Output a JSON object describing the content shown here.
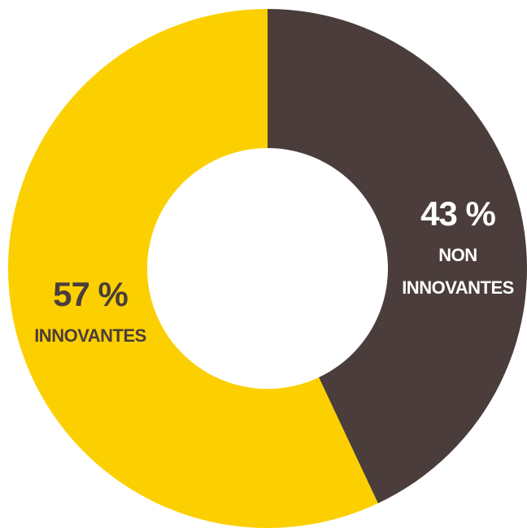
{
  "chart_data": {
    "type": "pie",
    "style": "donut",
    "slices": [
      {
        "value": 43,
        "value_label": "43 %",
        "label_lines": [
          "NON",
          "INNOVANTES"
        ],
        "color": "#4a3d3b",
        "text_color": "#ffffff"
      },
      {
        "value": 57,
        "value_label": "57 %",
        "label_lines": [
          "INNOVANTES"
        ],
        "color": "#fcd000",
        "text_color": "#4a3d3b"
      }
    ],
    "start": "top",
    "direction": "clockwise",
    "legend": "none"
  }
}
